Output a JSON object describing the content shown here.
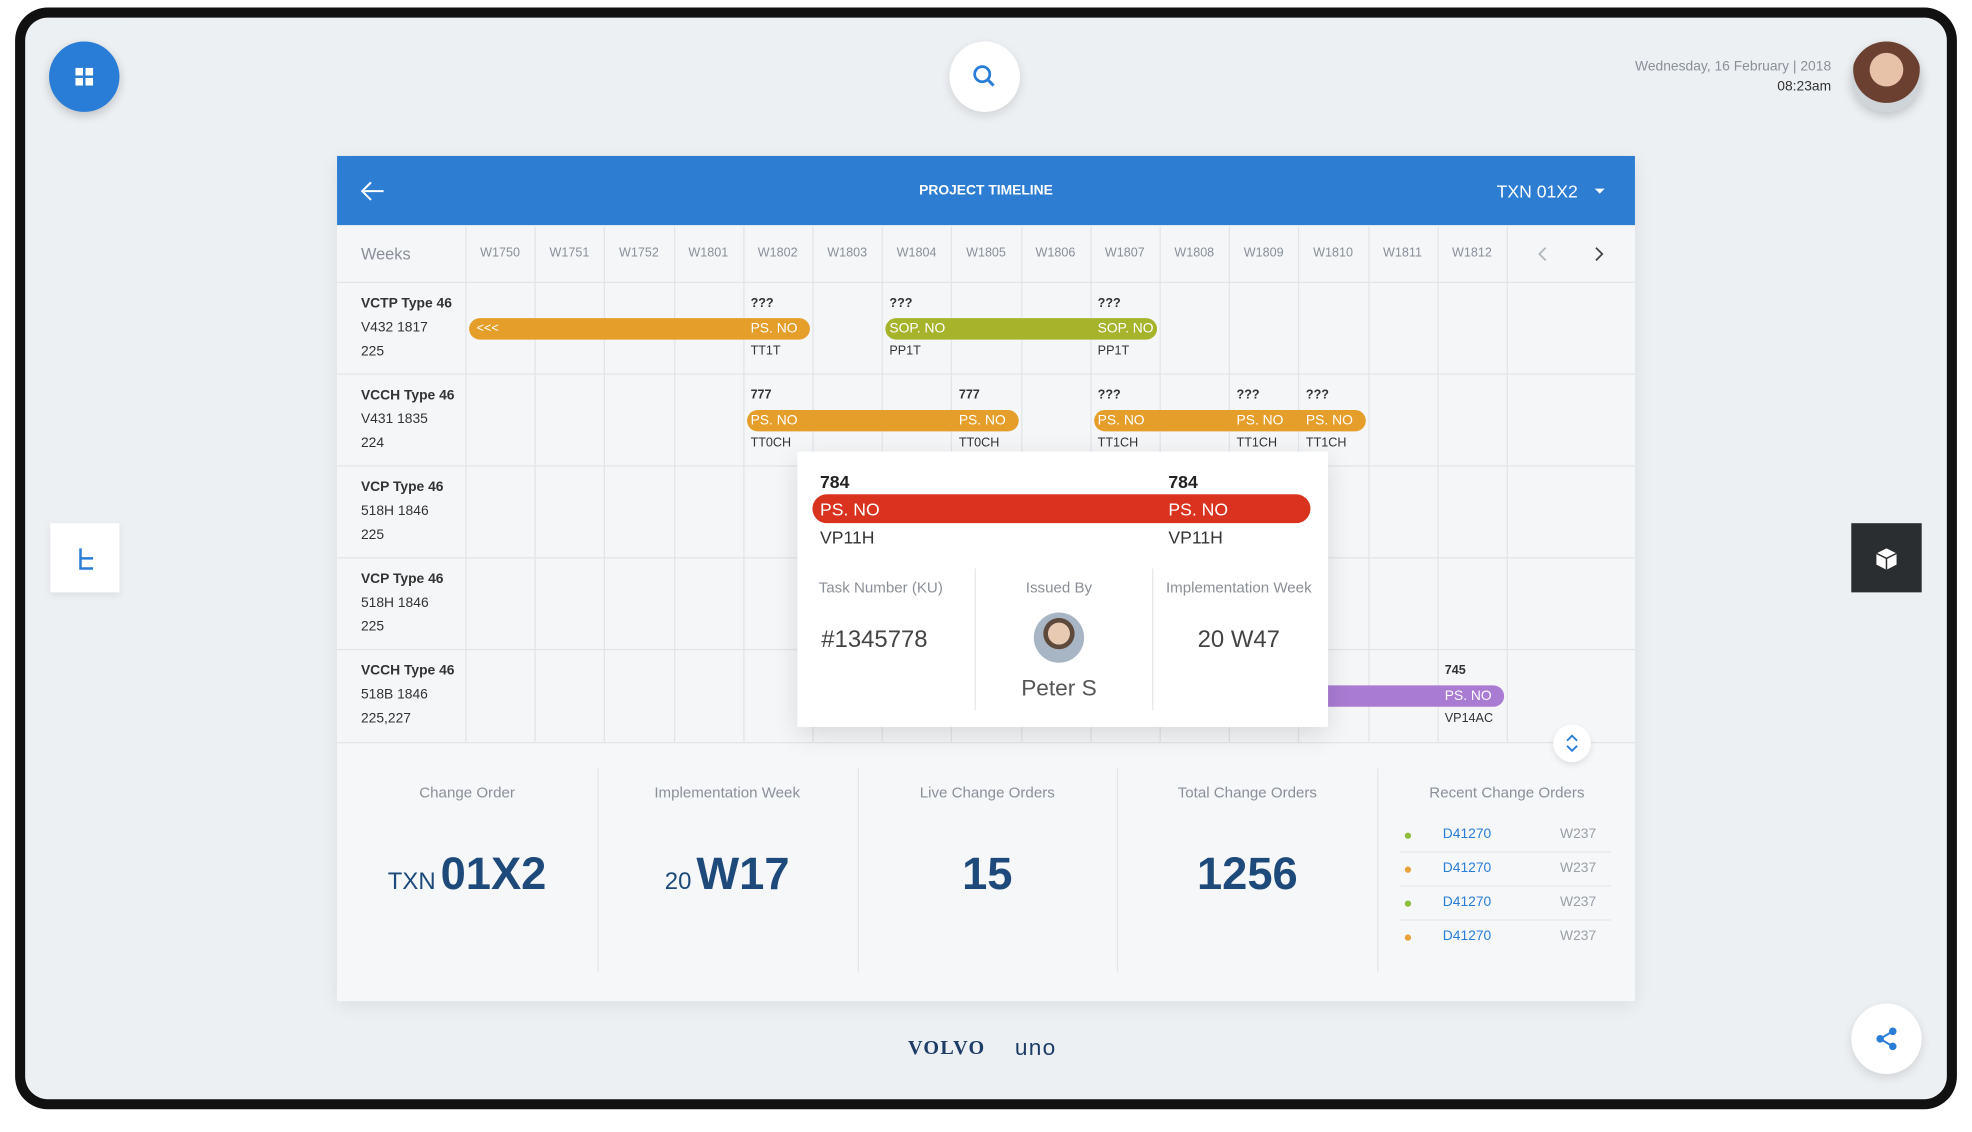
{
  "header": {
    "date": "Wednesday, 16 February | 2018",
    "time": "08:23am"
  },
  "panel": {
    "title": "PROJECT TIMELINE",
    "selector": "TXN 01X2"
  },
  "timeline": {
    "weeks_label": "Weeks",
    "weeks": [
      "W1750",
      "W1751",
      "W1752",
      "W1801",
      "W1802",
      "W1803",
      "W1804",
      "W1805",
      "W1806",
      "W1807",
      "W1808",
      "W1809",
      "W1810",
      "W1811",
      "W1812"
    ],
    "rows": [
      {
        "lines": [
          "VCTP Type 46",
          "V432 1817",
          "225"
        ],
        "bars": [
          {
            "color": "#e59e2a",
            "lead": "<<<",
            "segments": [
              {
                "top": "???",
                "label": "PS. NO",
                "bottom": "TT1T"
              }
            ]
          },
          {
            "color": "#a6b42c",
            "segments": [
              {
                "top": "???",
                "label": "SOP. NO",
                "bottom": "PP1T"
              },
              {
                "top": "???",
                "label": "SOP. NO",
                "bottom": "PP1T"
              }
            ]
          }
        ]
      },
      {
        "lines": [
          "VCCH Type 46",
          "V431 1835",
          "224"
        ],
        "bars": [
          {
            "color": "#e59e2a",
            "segments": [
              {
                "top": "777",
                "label": "PS. NO",
                "bottom": "TT0CH"
              },
              {
                "top": "777",
                "label": "PS. NO",
                "bottom": "TT0CH"
              }
            ]
          },
          {
            "color": "#e59e2a",
            "segments": [
              {
                "top": "???",
                "label": "PS. NO",
                "bottom": "TT1CH"
              },
              {
                "top": "???",
                "label": "PS. NO",
                "bottom": "TT1CH"
              },
              {
                "top": "???",
                "label": "PS. NO",
                "bottom": "TT1CH"
              }
            ]
          }
        ]
      },
      {
        "lines": [
          "VCP Type 46",
          "518H 1846",
          "225"
        ],
        "bars": []
      },
      {
        "lines": [
          "VCP Type 46",
          "518H 1846",
          "225"
        ],
        "bars": []
      },
      {
        "lines": [
          "VCCH Type 46",
          "518B 1846",
          "225,227"
        ],
        "bars": [
          {
            "color": "#a97bd3",
            "segments": [
              {
                "top": "745",
                "label": "PS. NO",
                "bottom": "VP14AC"
              }
            ]
          }
        ]
      }
    ]
  },
  "popup": {
    "color": "#d9321f",
    "segments": [
      {
        "top": "784",
        "label": "PS. NO",
        "bottom": "VP11H"
      },
      {
        "top": "784",
        "label": "PS. NO",
        "bottom": "VP11H"
      }
    ],
    "task_label": "Task Number (KU)",
    "task_value": "#1345778",
    "issued_label": "Issued By",
    "issued_value": "Peter S",
    "week_label": "Implementation Week",
    "week_value": "20 W47"
  },
  "stats": [
    {
      "label": "Change Order",
      "prefix": "TXN",
      "value": "01X2"
    },
    {
      "label": "Implementation Week",
      "prefix": "20",
      "value": "W17"
    },
    {
      "label": "Live Change Orders",
      "value": "15"
    },
    {
      "label": "Total Change Orders",
      "value": "1256"
    }
  ],
  "recent": {
    "label": "Recent Change Orders",
    "items": [
      {
        "id": "D41270",
        "week": "W237",
        "color": "#8fbf3a"
      },
      {
        "id": "D41270",
        "week": "W237",
        "color": "#e8a23a"
      },
      {
        "id": "D41270",
        "week": "W237",
        "color": "#8fbf3a"
      },
      {
        "id": "D41270",
        "week": "W237",
        "color": "#e8a23a"
      }
    ]
  },
  "footer": {
    "brand": "VOLVO",
    "product": "uno"
  }
}
